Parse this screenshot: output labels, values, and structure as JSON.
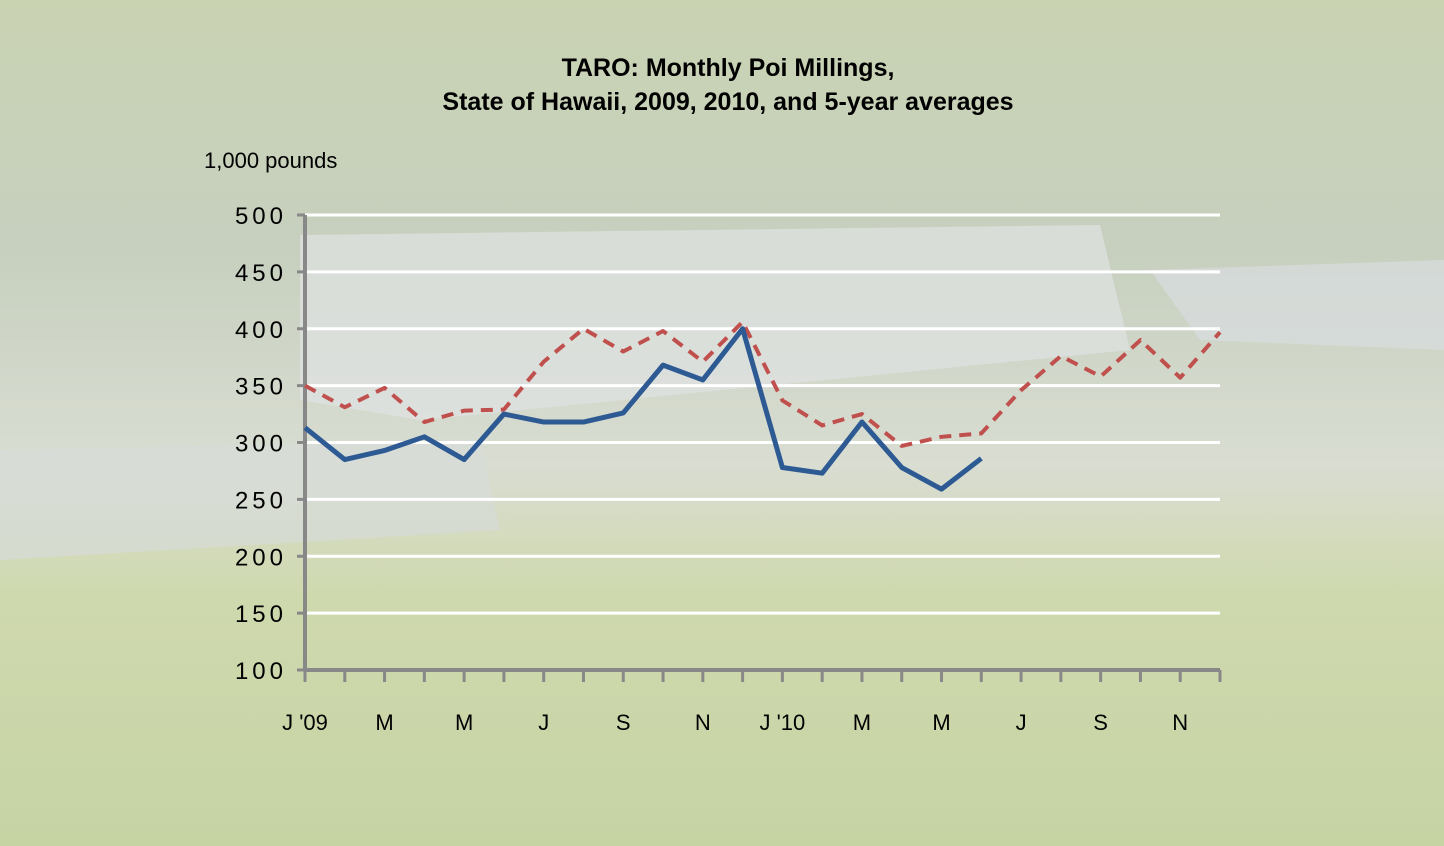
{
  "chart_data": {
    "type": "line",
    "title": "TARO:  Monthly Poi Millings,",
    "subtitle": "State of Hawaii, 2009, 2010, and 5-year averages",
    "y_label": "1,000 pounds",
    "categories": [
      "J '09",
      null,
      "M",
      null,
      "M",
      null,
      "J",
      null,
      "S",
      null,
      "N",
      null,
      "J '10",
      null,
      "M",
      null,
      "M",
      null,
      "J",
      null,
      "S",
      null,
      "N",
      null
    ],
    "series": [
      {
        "color": "#2e5a94",
        "dashed": false,
        "values": [
          313,
          285,
          293,
          305,
          285,
          325,
          318,
          318,
          326,
          368,
          355,
          400,
          278,
          273,
          318,
          278,
          259,
          286,
          null,
          null,
          null,
          null,
          null,
          null
        ]
      },
      {
        "color": "#c0504d",
        "dashed": true,
        "values": [
          350,
          331,
          348,
          318,
          328,
          329,
          371,
          400,
          380,
          398,
          371,
          406,
          337,
          315,
          325,
          297,
          305,
          308,
          346,
          376,
          358,
          390,
          357,
          397
        ]
      }
    ],
    "ylim": [
      100,
      500
    ],
    "yticks": [
      100,
      150,
      200,
      250,
      300,
      350,
      400,
      450,
      500
    ],
    "grid": true
  }
}
